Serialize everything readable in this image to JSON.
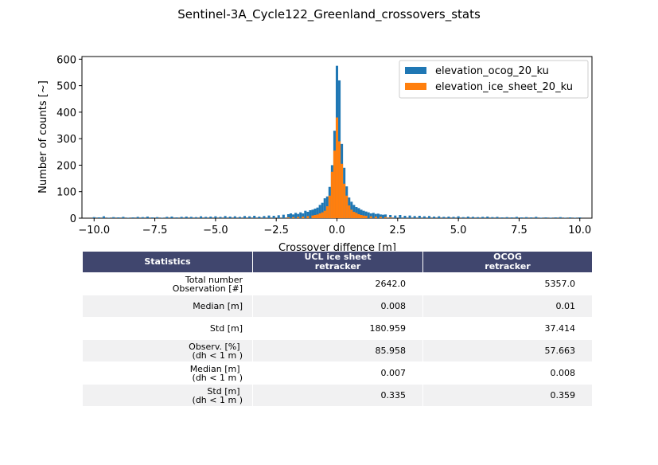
{
  "figure_title": "Sentinel-3A_Cycle122_Greenland_crossovers_stats",
  "chart_data": {
    "type": "bar",
    "title": "Sentinel-3A_Cycle122_Greenland_crossovers_stats",
    "xlabel": "Crossover diffence [m]",
    "ylabel": "Number of counts [~]",
    "xlim": [
      -10.5,
      10.5
    ],
    "ylim": [
      0,
      610
    ],
    "xticks": [
      -10.0,
      -7.5,
      -5.0,
      -2.5,
      0.0,
      2.5,
      5.0,
      7.5,
      10.0
    ],
    "xtick_labels": [
      "−10.0",
      "−7.5",
      "−5.0",
      "−2.5",
      "0.0",
      "2.5",
      "5.0",
      "7.5",
      "10.0"
    ],
    "yticks": [
      0,
      100,
      200,
      300,
      400,
      500,
      600
    ],
    "ytick_labels": [
      "0",
      "100",
      "200",
      "300",
      "400",
      "500",
      "600"
    ],
    "bin_width": 0.1,
    "legend_position": "upper right",
    "series": [
      {
        "name": "elevation_ocog_20_ku",
        "color": "#1f77b4",
        "bins": [
          [
            -10.0,
            4
          ],
          [
            -9.8,
            3
          ],
          [
            -9.6,
            7
          ],
          [
            -9.4,
            2
          ],
          [
            -9.2,
            4
          ],
          [
            -9.0,
            3
          ],
          [
            -8.8,
            5
          ],
          [
            -8.6,
            2
          ],
          [
            -8.4,
            3
          ],
          [
            -8.2,
            5
          ],
          [
            -8.0,
            4
          ],
          [
            -7.8,
            6
          ],
          [
            -7.6,
            3
          ],
          [
            -7.4,
            4
          ],
          [
            -7.2,
            2
          ],
          [
            -7.0,
            5
          ],
          [
            -6.8,
            6
          ],
          [
            -6.6,
            3
          ],
          [
            -6.4,
            5
          ],
          [
            -6.2,
            6
          ],
          [
            -6.0,
            5
          ],
          [
            -5.8,
            4
          ],
          [
            -5.6,
            7
          ],
          [
            -5.4,
            5
          ],
          [
            -5.2,
            6
          ],
          [
            -5.0,
            7
          ],
          [
            -4.8,
            5
          ],
          [
            -4.6,
            8
          ],
          [
            -4.4,
            6
          ],
          [
            -4.2,
            7
          ],
          [
            -4.0,
            5
          ],
          [
            -3.8,
            8
          ],
          [
            -3.6,
            7
          ],
          [
            -3.4,
            9
          ],
          [
            -3.2,
            6
          ],
          [
            -3.0,
            8
          ],
          [
            -2.8,
            10
          ],
          [
            -2.6,
            9
          ],
          [
            -2.4,
            11
          ],
          [
            -2.2,
            13
          ],
          [
            -2.0,
            15
          ],
          [
            -1.9,
            18
          ],
          [
            -1.8,
            14
          ],
          [
            -1.7,
            20
          ],
          [
            -1.6,
            16
          ],
          [
            -1.5,
            22
          ],
          [
            -1.4,
            18
          ],
          [
            -1.3,
            28
          ],
          [
            -1.2,
            24
          ],
          [
            -1.1,
            30
          ],
          [
            -1.0,
            32
          ],
          [
            -0.9,
            36
          ],
          [
            -0.8,
            40
          ],
          [
            -0.7,
            50
          ],
          [
            -0.6,
            58
          ],
          [
            -0.5,
            75
          ],
          [
            -0.4,
            82
          ],
          [
            -0.3,
            118
          ],
          [
            -0.2,
            200
          ],
          [
            -0.1,
            330
          ],
          [
            0.0,
            575
          ],
          [
            0.1,
            520
          ],
          [
            0.2,
            280
          ],
          [
            0.3,
            190
          ],
          [
            0.4,
            120
          ],
          [
            0.5,
            78
          ],
          [
            0.6,
            62
          ],
          [
            0.7,
            50
          ],
          [
            0.8,
            42
          ],
          [
            0.9,
            38
          ],
          [
            1.0,
            32
          ],
          [
            1.1,
            28
          ],
          [
            1.2,
            25
          ],
          [
            1.3,
            22
          ],
          [
            1.4,
            18
          ],
          [
            1.5,
            20
          ],
          [
            1.6,
            16
          ],
          [
            1.7,
            17
          ],
          [
            1.8,
            14
          ],
          [
            1.9,
            13
          ],
          [
            2.0,
            14
          ],
          [
            2.2,
            12
          ],
          [
            2.4,
            10
          ],
          [
            2.6,
            12
          ],
          [
            2.8,
            9
          ],
          [
            3.0,
            10
          ],
          [
            3.2,
            8
          ],
          [
            3.4,
            9
          ],
          [
            3.6,
            7
          ],
          [
            3.8,
            8
          ],
          [
            4.0,
            6
          ],
          [
            4.2,
            7
          ],
          [
            4.4,
            5
          ],
          [
            4.6,
            6
          ],
          [
            4.8,
            5
          ],
          [
            5.0,
            7
          ],
          [
            5.2,
            4
          ],
          [
            5.4,
            6
          ],
          [
            5.6,
            5
          ],
          [
            5.8,
            4
          ],
          [
            6.0,
            5
          ],
          [
            6.2,
            6
          ],
          [
            6.4,
            4
          ],
          [
            6.6,
            5
          ],
          [
            6.8,
            3
          ],
          [
            7.0,
            4
          ],
          [
            7.2,
            3
          ],
          [
            7.4,
            5
          ],
          [
            7.6,
            3
          ],
          [
            7.8,
            4
          ],
          [
            8.0,
            3
          ],
          [
            8.2,
            5
          ],
          [
            8.4,
            2
          ],
          [
            8.6,
            3
          ],
          [
            8.8,
            2
          ],
          [
            9.0,
            3
          ],
          [
            9.2,
            4
          ],
          [
            9.4,
            2
          ],
          [
            9.6,
            3
          ],
          [
            9.8,
            2
          ],
          [
            10.0,
            3
          ]
        ]
      },
      {
        "name": "elevation_ice_sheet_20_ku",
        "color": "#ff7f0e",
        "bins": [
          [
            -2.0,
            3
          ],
          [
            -1.8,
            4
          ],
          [
            -1.6,
            5
          ],
          [
            -1.4,
            6
          ],
          [
            -1.2,
            8
          ],
          [
            -1.0,
            10
          ],
          [
            -0.9,
            12
          ],
          [
            -0.8,
            14
          ],
          [
            -0.7,
            18
          ],
          [
            -0.6,
            22
          ],
          [
            -0.5,
            28
          ],
          [
            -0.4,
            45
          ],
          [
            -0.3,
            85
          ],
          [
            -0.2,
            175
          ],
          [
            -0.1,
            255
          ],
          [
            0.0,
            380
          ],
          [
            0.1,
            290
          ],
          [
            0.2,
            205
          ],
          [
            0.3,
            130
          ],
          [
            0.4,
            85
          ],
          [
            0.5,
            48
          ],
          [
            0.6,
            32
          ],
          [
            0.7,
            24
          ],
          [
            0.8,
            20
          ],
          [
            0.9,
            15
          ],
          [
            1.0,
            12
          ],
          [
            1.1,
            10
          ],
          [
            1.2,
            9
          ],
          [
            1.4,
            7
          ],
          [
            1.6,
            6
          ],
          [
            1.8,
            5
          ],
          [
            2.0,
            4
          ],
          [
            2.2,
            3
          ]
        ]
      }
    ]
  },
  "table": {
    "headers": [
      "Statistics",
      "UCL ice sheet\nretracker",
      "OCOG\nretracker"
    ],
    "rows": [
      {
        "label": "Total number\nObservation [#]",
        "ucl": "2642.0",
        "ocog": "5357.0"
      },
      {
        "label": "Median [m]",
        "ucl": "0.008",
        "ocog": "0.01"
      },
      {
        "label": "Std [m]",
        "ucl": "180.959",
        "ocog": "37.414"
      },
      {
        "label": "Observ. [%] \n(dh < 1 m )",
        "ucl": "85.958",
        "ocog": "57.663"
      },
      {
        "label": "Median [m] \n(dh < 1 m )",
        "ucl": "0.007",
        "ocog": "0.008"
      },
      {
        "label": "Std [m] \n(dh < 1 m )",
        "ucl": "0.335",
        "ocog": "0.359"
      }
    ]
  }
}
